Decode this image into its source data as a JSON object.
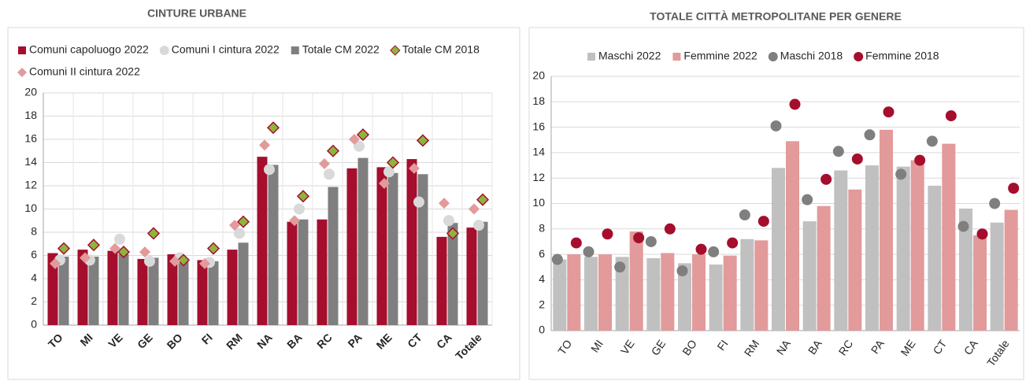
{
  "chart_data": [
    {
      "type": "bar",
      "title": "CINTURE URBANE",
      "categories": [
        "TO",
        "MI",
        "VE",
        "GE",
        "BO",
        "FI",
        "RM",
        "NA",
        "BA",
        "RC",
        "PA",
        "ME",
        "CT",
        "CA",
        "Totale"
      ],
      "series": [
        {
          "name": "Comuni capoluogo 2022",
          "marker": "bar",
          "color": "#a50e2d",
          "values": [
            6.2,
            6.5,
            6.4,
            5.7,
            6.1,
            5.6,
            6.5,
            14.5,
            8.9,
            9.1,
            13.5,
            13.6,
            14.3,
            7.6,
            8.4
          ]
        },
        {
          "name": "Comuni I cintura 2022",
          "marker": "circle",
          "color": "#d9d9d9",
          "values": [
            5.6,
            5.6,
            7.4,
            5.5,
            5.8,
            5.4,
            7.9,
            13.4,
            10.0,
            13.0,
            15.4,
            13.2,
            10.6,
            9.0,
            8.6
          ]
        },
        {
          "name": "Totale CM 2022",
          "marker": "bar",
          "color": "#7f7f7f",
          "values": [
            5.9,
            5.9,
            6.1,
            5.8,
            5.6,
            5.5,
            7.1,
            13.8,
            9.1,
            11.9,
            14.4,
            13.1,
            13.0,
            8.8,
            8.9
          ]
        },
        {
          "name": "Totale CM 2018",
          "marker": "diamond",
          "color": "#8db53c",
          "edgecolor": "#a50e2d",
          "values": [
            6.6,
            6.9,
            6.3,
            7.9,
            5.6,
            6.6,
            8.9,
            17.0,
            11.1,
            15.0,
            16.4,
            14.0,
            15.9,
            7.9,
            10.8
          ]
        },
        {
          "name": "Comuni II cintura 2022",
          "marker": "diamond",
          "color": "#e29a9a",
          "values": [
            5.3,
            5.8,
            6.6,
            6.3,
            5.5,
            5.3,
            8.6,
            15.5,
            9.0,
            13.9,
            16.0,
            12.2,
            13.5,
            10.5,
            10.0
          ]
        }
      ],
      "ylim": [
        0,
        20
      ],
      "yticks": [
        0,
        2,
        4,
        6,
        8,
        10,
        12,
        14,
        16,
        18,
        20
      ],
      "grid": true
    },
    {
      "type": "bar",
      "title": "TOTALE CITTÀ METROPOLITANE PER GENERE",
      "categories": [
        "TO",
        "MI",
        "VE",
        "GE",
        "BO",
        "FI",
        "RM",
        "NA",
        "BA",
        "RC",
        "PA",
        "ME",
        "CT",
        "CA",
        "Totale"
      ],
      "series": [
        {
          "name": "Maschi 2022",
          "marker": "bar",
          "color": "#c0c0c0",
          "values": [
            5.6,
            5.8,
            5.8,
            5.7,
            5.3,
            5.2,
            7.2,
            12.8,
            8.6,
            12.6,
            13.0,
            12.9,
            11.4,
            9.6,
            8.5
          ]
        },
        {
          "name": "Femmine 2022",
          "marker": "bar",
          "color": "#e29a9a",
          "values": [
            6.0,
            6.0,
            7.8,
            6.1,
            6.0,
            5.9,
            7.1,
            14.9,
            9.8,
            11.1,
            15.8,
            13.4,
            14.7,
            7.5,
            9.5
          ]
        },
        {
          "name": "Maschi 2018",
          "marker": "circle",
          "color": "#7f7f7f",
          "values": [
            5.6,
            6.2,
            5.0,
            7.0,
            4.7,
            6.2,
            9.1,
            16.1,
            10.3,
            14.1,
            15.4,
            12.3,
            14.9,
            8.2,
            10.0
          ]
        },
        {
          "name": "Femmine 2018",
          "marker": "circle",
          "color": "#a50e2d",
          "values": [
            6.9,
            7.6,
            7.3,
            8.0,
            6.4,
            6.9,
            8.6,
            17.8,
            11.9,
            13.5,
            17.2,
            13.4,
            16.9,
            7.6,
            11.2
          ]
        }
      ],
      "ylim": [
        0,
        20
      ],
      "yticks": [
        0,
        2,
        4,
        6,
        8,
        10,
        12,
        14,
        16,
        18,
        20
      ],
      "grid": true
    }
  ]
}
